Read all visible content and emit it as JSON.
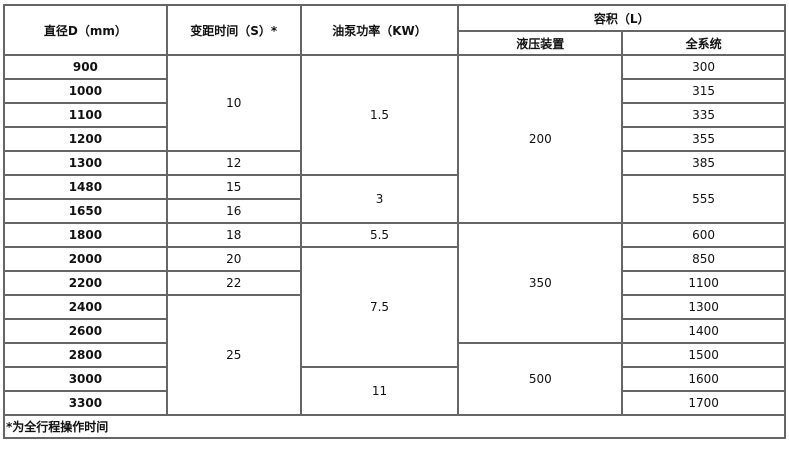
{
  "headers": {
    "diameter": "直径D（mm）",
    "pitch_time": "变距时间（S）*",
    "pump_power": "油泵功率（KW）",
    "volume": "容积（L）",
    "hydraulic": "液压装置",
    "system": "全系统"
  },
  "rows": [
    {
      "d": "900",
      "t": {
        "text": "10",
        "span": 4
      },
      "p": {
        "text": "1.5",
        "span": 5
      },
      "h": {
        "text": "200",
        "span": 7
      },
      "s": {
        "text": "300",
        "span": 1
      }
    },
    {
      "d": "1000",
      "s": {
        "text": "315",
        "span": 1
      }
    },
    {
      "d": "1100",
      "s": {
        "text": "335",
        "span": 1
      }
    },
    {
      "d": "1200",
      "s": {
        "text": "355",
        "span": 1
      }
    },
    {
      "d": "1300",
      "t": {
        "text": "12",
        "span": 1
      },
      "s": {
        "text": "385",
        "span": 1
      }
    },
    {
      "d": "1480",
      "t": {
        "text": "15",
        "span": 1
      },
      "p": {
        "text": "3",
        "span": 2
      },
      "s": {
        "text": "555",
        "span": 2
      }
    },
    {
      "d": "1650",
      "t": {
        "text": "16",
        "span": 1
      }
    },
    {
      "d": "1800",
      "t": {
        "text": "18",
        "span": 1
      },
      "p": {
        "text": "5.5",
        "span": 1
      },
      "h": {
        "text": "350",
        "span": 5
      },
      "s": {
        "text": "600",
        "span": 1
      }
    },
    {
      "d": "2000",
      "t": {
        "text": "20",
        "span": 1
      },
      "p": {
        "text": "7.5",
        "span": 5
      },
      "s": {
        "text": "850",
        "span": 1
      }
    },
    {
      "d": "2200",
      "t": {
        "text": "22",
        "span": 1
      },
      "s": {
        "text": "1100",
        "span": 1
      }
    },
    {
      "d": "2400",
      "t": {
        "text": "25",
        "span": 5
      },
      "s": {
        "text": "1300",
        "span": 1
      }
    },
    {
      "d": "2600",
      "s": {
        "text": "1400",
        "span": 1
      }
    },
    {
      "d": "2800",
      "h": {
        "text": "500",
        "span": 3
      },
      "s": {
        "text": "1500",
        "span": 1
      }
    },
    {
      "d": "3000",
      "p": {
        "text": "11",
        "span": 2
      },
      "s": {
        "text": "1600",
        "span": 1
      }
    },
    {
      "d": "3300",
      "s": {
        "text": "1700",
        "span": 1
      }
    }
  ],
  "footnote": "*为全行程操作时间"
}
